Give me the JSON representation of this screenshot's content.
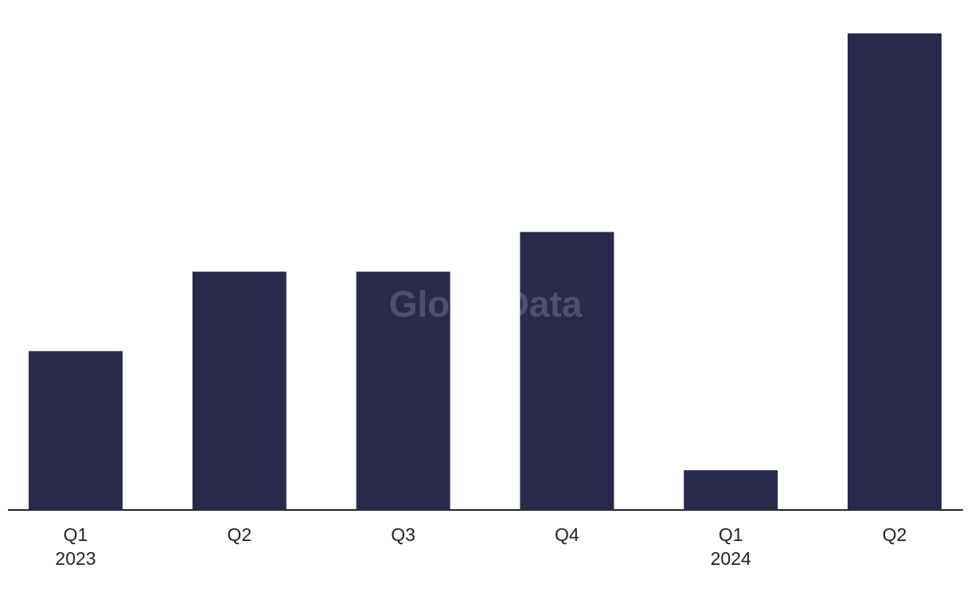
{
  "chart_data": {
    "type": "bar",
    "watermark": "GlobalData",
    "categories": [
      "Q1",
      "Q2",
      "Q3",
      "Q4",
      "Q1",
      "Q2"
    ],
    "year_labels": [
      "2023",
      null,
      null,
      null,
      "2024",
      null
    ],
    "values": [
      4,
      6,
      6,
      7,
      1,
      12
    ],
    "color": "#29294b",
    "ylim": [
      0,
      12
    ]
  }
}
